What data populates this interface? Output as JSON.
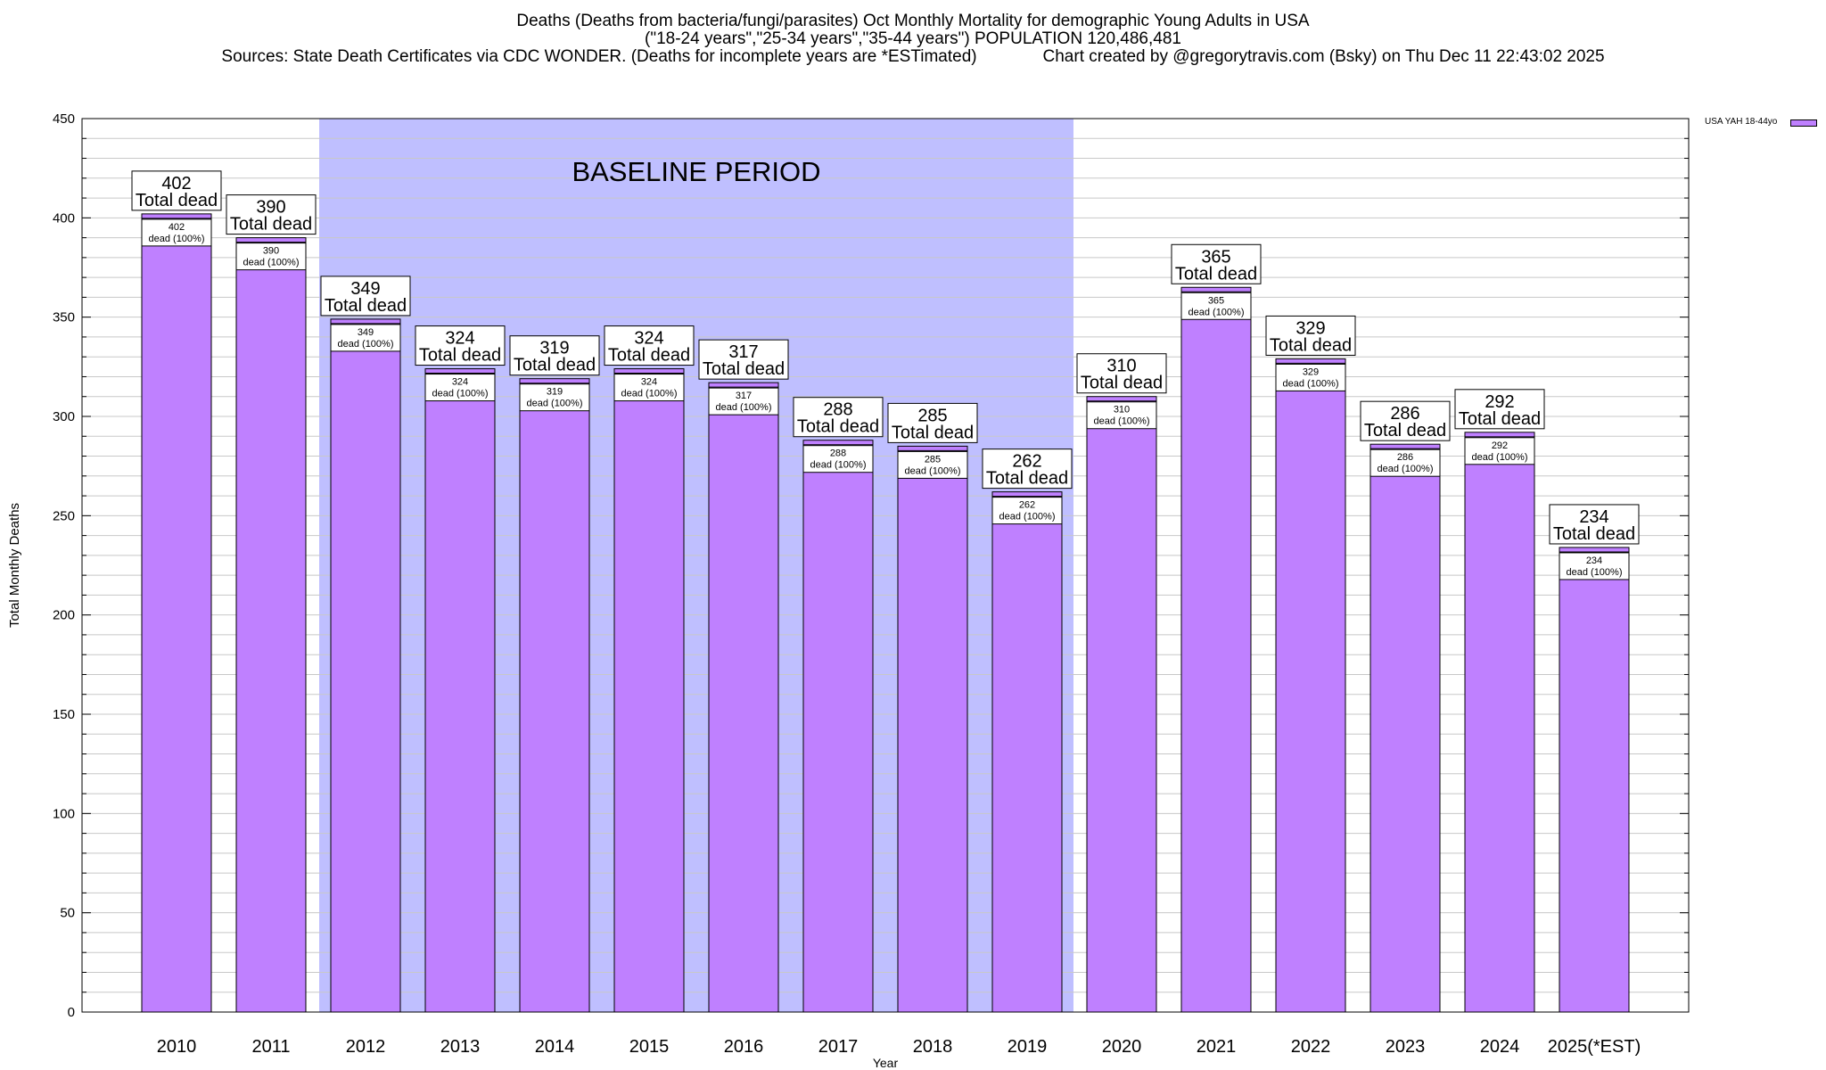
{
  "header": {
    "line1": "Deaths (Deaths from bacteria/fungi/parasites) Oct Monthly Mortality for demographic Young Adults in USA",
    "line2": "(\"18-24 years\",\"25-34 years\",\"35-44 years\") POPULATION 120,486,481",
    "line3": "Sources: State Death Certificates via CDC WONDER. (Deaths for incomplete years are *ESTimated)              Chart created by @gregorytravis.com (Bsky) on Thu Dec 11 22:43:02 2025"
  },
  "legend": {
    "label": "USA YAH 18-44yo"
  },
  "colors": {
    "bar": "#bf80ff",
    "baseline": "#bfbfff",
    "grid": "#c8c8c8"
  },
  "chart_data": {
    "type": "bar",
    "title": "Deaths (Deaths from bacteria/fungi/parasites) Oct Monthly Mortality for demographic Young Adults in USA",
    "xlabel": "Year",
    "ylabel": "Total Monthly Deaths",
    "ylim": [
      0,
      450
    ],
    "yticks": [
      0,
      50,
      100,
      150,
      200,
      250,
      300,
      350,
      400,
      450
    ],
    "categories": [
      "2010",
      "2011",
      "2012",
      "2013",
      "2014",
      "2015",
      "2016",
      "2017",
      "2018",
      "2019",
      "2020",
      "2021",
      "2022",
      "2023",
      "2024",
      "2025(*EST)"
    ],
    "values": [
      402,
      390,
      349,
      324,
      319,
      324,
      317,
      288,
      285,
      262,
      310,
      365,
      329,
      286,
      292,
      234
    ],
    "total_label_suffix": "Total dead",
    "inner_label_suffix": "dead (100%)",
    "baseline": {
      "label": "BASELINE PERIOD",
      "from": "2012",
      "to": "2019"
    },
    "series": [
      {
        "name": "USA YAH 18-44yo",
        "values": [
          402,
          390,
          349,
          324,
          319,
          324,
          317,
          288,
          285,
          262,
          310,
          365,
          329,
          286,
          292,
          234
        ]
      }
    ]
  }
}
